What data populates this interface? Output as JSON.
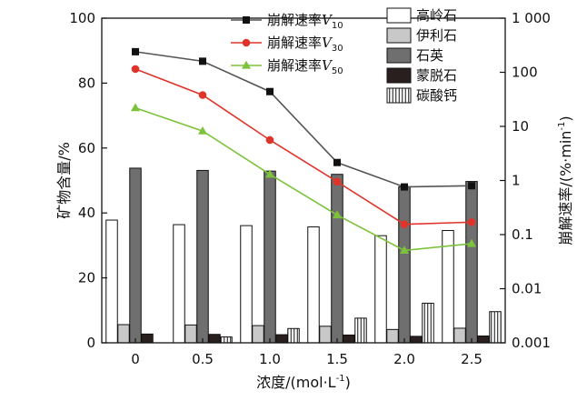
{
  "chart_data": {
    "type": "bar",
    "categories": [
      "0",
      "0.5",
      "1.0",
      "1.5",
      "2.0",
      "2.5"
    ],
    "xlabel_main": "浓度/(mol·L",
    "xlabel_sup": "-1",
    "xlabel_tail": ")",
    "y_left": {
      "label": "矿物含量/%",
      "range": [
        0,
        100
      ],
      "ticks": [
        "0",
        "20",
        "40",
        "60",
        "80",
        "100"
      ]
    },
    "y_right": {
      "label_main": "崩解速率/(%·min",
      "label_sup": "-1",
      "label_tail": ")",
      "scale": "log",
      "range": [
        0.001,
        1000
      ],
      "ticks": [
        "0.001",
        "0.01",
        "0.1",
        "1",
        "10",
        "100",
        "1 000"
      ]
    },
    "bar_series": [
      {
        "name": "高岭石",
        "color": "#ffffff",
        "pattern": "none",
        "values": [
          37.8,
          36.4,
          36.1,
          35.7,
          33.0,
          34.6
        ]
      },
      {
        "name": "伊利石",
        "color": "#c8c8c8",
        "pattern": "none",
        "values": [
          5.6,
          5.5,
          5.3,
          5.1,
          4.1,
          4.5
        ]
      },
      {
        "name": "石英",
        "color": "#6f6f6f",
        "pattern": "none",
        "values": [
          53.8,
          53.1,
          52.9,
          51.9,
          48.1,
          49.7
        ]
      },
      {
        "name": "蒙脱石",
        "color": "#2a1f1f",
        "pattern": "none",
        "values": [
          2.7,
          2.6,
          2.5,
          2.4,
          2.0,
          2.1
        ]
      },
      {
        "name": "碳酸钙",
        "color": "#ffffff",
        "pattern": "vertical-lines",
        "values": [
          0,
          1.8,
          4.4,
          7.6,
          12.2,
          9.6
        ]
      }
    ],
    "line_series": [
      {
        "name_prefix": "崩解速率",
        "name_var": "V",
        "name_sub": "10",
        "color": "#555555",
        "marker": "square",
        "values": [
          240,
          160,
          44,
          2.15,
          0.76,
          0.8
        ]
      },
      {
        "name_prefix": "崩解速率",
        "name_var": "V",
        "name_sub": "30",
        "color": "#e0342a",
        "marker": "circle",
        "values": [
          115,
          38,
          5.6,
          0.95,
          0.155,
          0.17
        ]
      },
      {
        "name_prefix": "崩解速率",
        "name_var": "V",
        "name_sub": "50",
        "color": "#7cc23a",
        "marker": "triangle",
        "values": [
          22,
          8.2,
          1.3,
          0.23,
          0.051,
          0.068
        ]
      }
    ],
    "legend_placement": "top"
  }
}
